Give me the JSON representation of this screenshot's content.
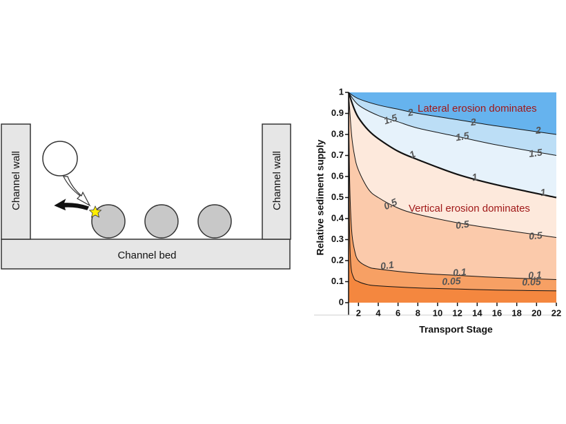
{
  "diagram": {
    "left_wall": "Channel wall",
    "right_wall": "Channel wall",
    "bed": "Channel bed"
  },
  "chart_data": {
    "type": "contour",
    "xlabel": "Transport Stage",
    "ylabel": "Relative sediment supply",
    "xlim": [
      1,
      22
    ],
    "ylim": [
      0,
      1
    ],
    "xticks": [
      2,
      4,
      6,
      8,
      10,
      12,
      14,
      16,
      18,
      20,
      22
    ],
    "yticks": [
      0,
      0.1,
      0.2,
      0.3,
      0.4,
      0.5,
      0.6,
      0.7,
      0.8,
      0.9,
      1
    ],
    "annotations": [
      "Lateral erosion dominates",
      "Vertical erosion dominates"
    ],
    "band_colors": [
      "#f4873f",
      "#f7a064",
      "#fbcaab",
      "#fde9dc",
      "#e6f2fb",
      "#bcdef6",
      "#66b3ee"
    ],
    "contours": [
      {
        "level": 0.05,
        "x": [
          1,
          1.05,
          1.2,
          1.5,
          2,
          3,
          4,
          8,
          12,
          16,
          22
        ],
        "y": [
          1,
          0.5,
          0.2,
          0.12,
          0.1,
          0.085,
          0.08,
          0.07,
          0.065,
          0.06,
          0.056
        ]
      },
      {
        "level": 0.1,
        "x": [
          1,
          1.1,
          1.3,
          1.6,
          2,
          3,
          4,
          8,
          12,
          16,
          22
        ],
        "y": [
          1,
          0.6,
          0.35,
          0.25,
          0.2,
          0.17,
          0.16,
          0.14,
          0.13,
          0.12,
          0.11
        ]
      },
      {
        "level": 0.5,
        "x": [
          1,
          1.3,
          1.6,
          2,
          3,
          4,
          6,
          8,
          12,
          16,
          22
        ],
        "y": [
          1,
          0.8,
          0.7,
          0.63,
          0.54,
          0.5,
          0.45,
          0.42,
          0.38,
          0.35,
          0.31
        ]
      },
      {
        "level": 1,
        "x": [
          1,
          1.5,
          2,
          3,
          4,
          6,
          8,
          12,
          16,
          22
        ],
        "y": [
          1,
          0.93,
          0.88,
          0.82,
          0.78,
          0.72,
          0.68,
          0.61,
          0.56,
          0.5
        ]
      },
      {
        "level": 1.5,
        "x": [
          1,
          2,
          4,
          6,
          8,
          12,
          16,
          22
        ],
        "y": [
          1,
          0.94,
          0.89,
          0.86,
          0.83,
          0.79,
          0.75,
          0.7
        ]
      },
      {
        "level": 2,
        "x": [
          1,
          2,
          4,
          6,
          8,
          12,
          16,
          22
        ],
        "y": [
          1,
          0.97,
          0.94,
          0.92,
          0.9,
          0.87,
          0.84,
          0.8
        ]
      }
    ]
  }
}
